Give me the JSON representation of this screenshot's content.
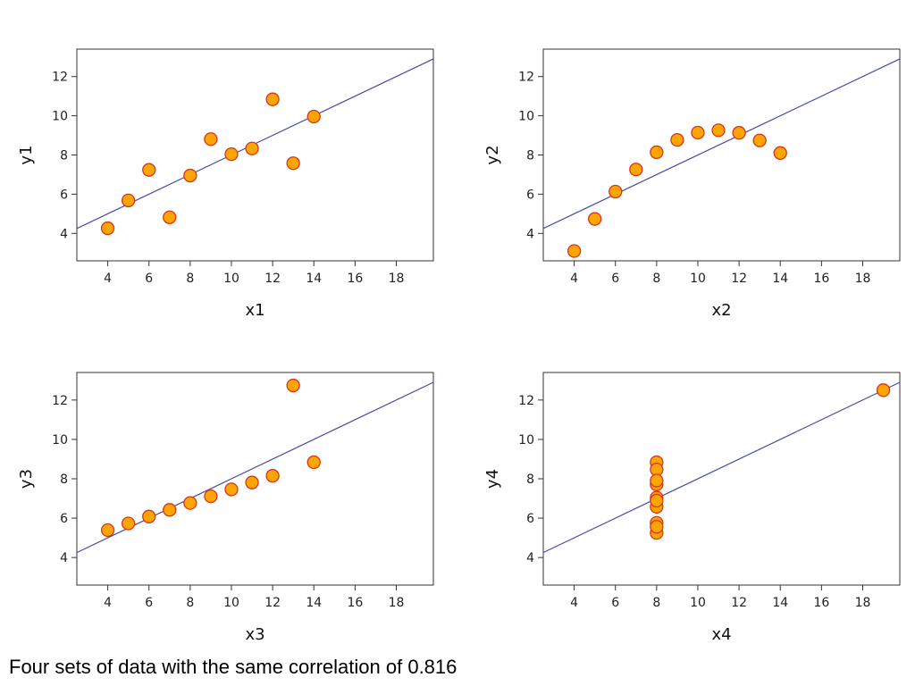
{
  "caption": "Four sets of data with the same correlation of 0.816",
  "chart_data": [
    {
      "type": "scatter",
      "xlabel": "x1",
      "ylabel": "y1",
      "xlim": [
        2.5,
        19.8
      ],
      "ylim": [
        2.6,
        13.4
      ],
      "xticks": [
        "4",
        "6",
        "8",
        "10",
        "12",
        "14",
        "16",
        "18"
      ],
      "yticks": [
        "4",
        "6",
        "8",
        "10",
        "12"
      ],
      "x": [
        10,
        8,
        13,
        9,
        11,
        14,
        6,
        4,
        12,
        7,
        5
      ],
      "y": [
        8.04,
        6.95,
        7.58,
        8.81,
        8.33,
        9.96,
        7.24,
        4.26,
        10.84,
        4.82,
        5.68
      ],
      "fit_line": {
        "intercept": 3.0,
        "slope": 0.5
      }
    },
    {
      "type": "scatter",
      "xlabel": "x2",
      "ylabel": "y2",
      "xlim": [
        2.5,
        19.8
      ],
      "ylim": [
        2.6,
        13.4
      ],
      "xticks": [
        "4",
        "6",
        "8",
        "10",
        "12",
        "14",
        "16",
        "18"
      ],
      "yticks": [
        "4",
        "6",
        "8",
        "10",
        "12"
      ],
      "x": [
        10,
        8,
        13,
        9,
        11,
        14,
        6,
        4,
        12,
        7,
        5
      ],
      "y": [
        9.14,
        8.14,
        8.74,
        8.77,
        9.26,
        8.1,
        6.13,
        3.1,
        9.13,
        7.26,
        4.74
      ],
      "fit_line": {
        "intercept": 3.0,
        "slope": 0.5
      }
    },
    {
      "type": "scatter",
      "xlabel": "x3",
      "ylabel": "y3",
      "xlim": [
        2.5,
        19.8
      ],
      "ylim": [
        2.6,
        13.4
      ],
      "xticks": [
        "4",
        "6",
        "8",
        "10",
        "12",
        "14",
        "16",
        "18"
      ],
      "yticks": [
        "4",
        "6",
        "8",
        "10",
        "12"
      ],
      "x": [
        10,
        8,
        13,
        9,
        11,
        14,
        6,
        4,
        12,
        7,
        5
      ],
      "y": [
        7.46,
        6.77,
        12.74,
        7.11,
        7.81,
        8.84,
        6.08,
        5.39,
        8.15,
        6.42,
        5.73
      ],
      "fit_line": {
        "intercept": 3.0,
        "slope": 0.5
      }
    },
    {
      "type": "scatter",
      "xlabel": "x4",
      "ylabel": "y4",
      "xlim": [
        2.5,
        19.8
      ],
      "ylim": [
        2.6,
        13.4
      ],
      "xticks": [
        "4",
        "6",
        "8",
        "10",
        "12",
        "14",
        "16",
        "18"
      ],
      "yticks": [
        "4",
        "6",
        "8",
        "10",
        "12"
      ],
      "x": [
        8,
        8,
        8,
        8,
        8,
        8,
        8,
        19,
        8,
        8,
        8
      ],
      "y": [
        6.58,
        5.76,
        7.71,
        8.84,
        8.47,
        7.04,
        5.25,
        12.5,
        5.56,
        7.91,
        6.89
      ],
      "fit_line": {
        "intercept": 3.0,
        "slope": 0.5
      }
    }
  ],
  "style": {
    "marker_fill": "#ffa500",
    "marker_stroke": "#d6341c",
    "fit_line_color": "#4a4aa8",
    "axis_color": "#333333"
  }
}
